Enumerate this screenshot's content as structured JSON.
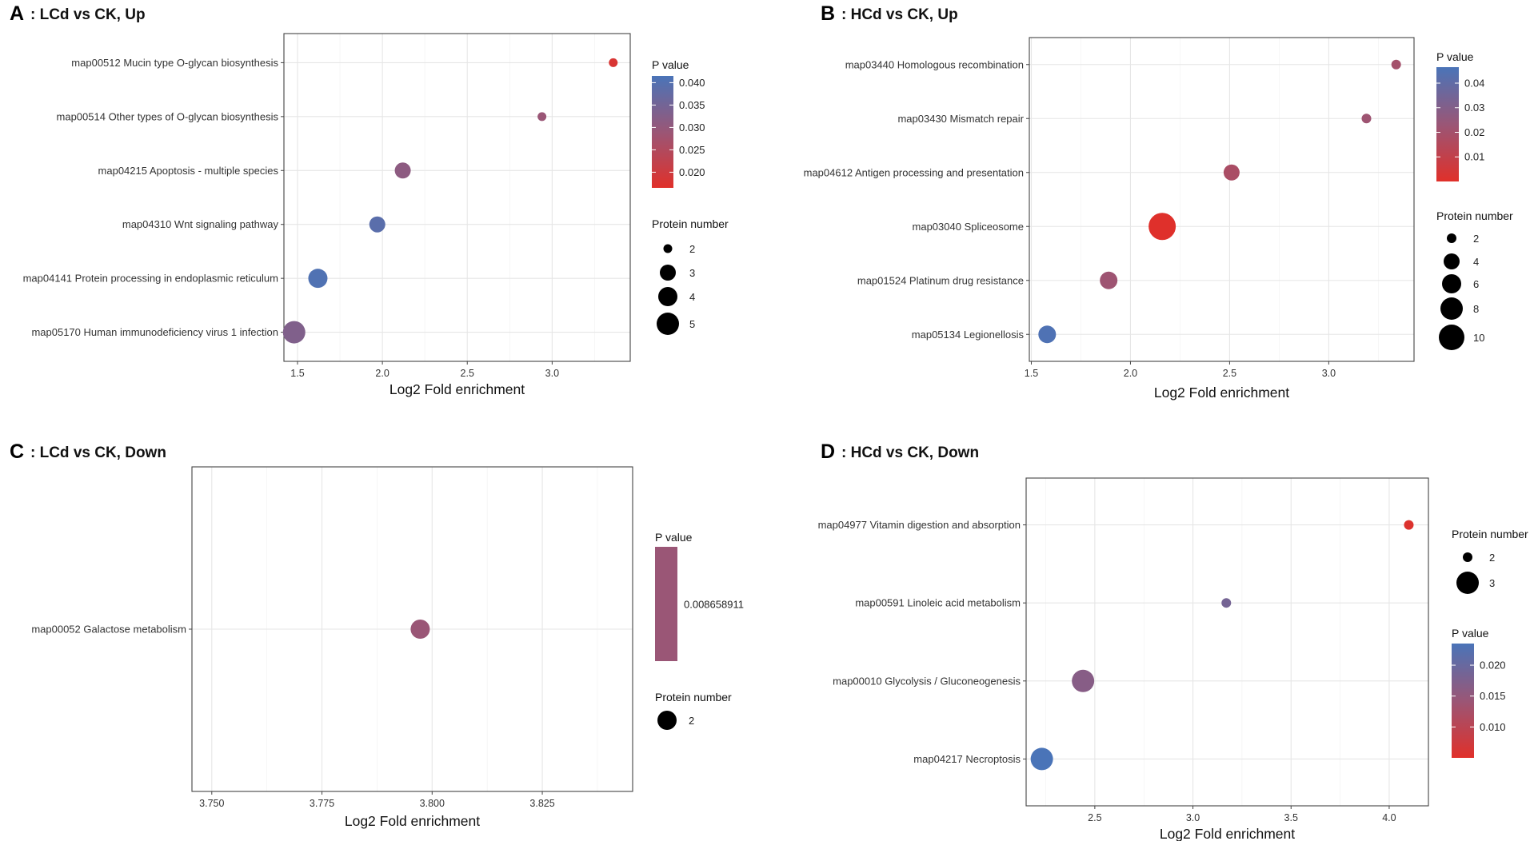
{
  "colors": {
    "low_p": "#e0302a",
    "high_p": "#4a74b8",
    "mid_p": "#9a5676",
    "point_black": "#000000"
  },
  "chart_data": [
    {
      "panel": "A",
      "title": ": LCd vs CK, Up",
      "type": "scatter",
      "xlabel": "Log2 Fold enrichment",
      "xlim": [
        1.42,
        3.46
      ],
      "xticks": [
        1.5,
        2.0,
        2.5,
        3.0
      ],
      "xtick_labels": [
        "1.5",
        "2.0",
        "2.5",
        "3.0"
      ],
      "categories": [
        "map00512 Mucin type O-glycan biosynthesis",
        "map00514 Other types of O-glycan biosynthesis",
        "map04215 Apoptosis - multiple species",
        "map04310 Wnt signaling pathway",
        "map04141 Protein processing in endoplasmic reticulum",
        "map05170 Human immunodeficiency virus 1 infection"
      ],
      "points": [
        {
          "x": 3.36,
          "protein_number": 2,
          "p_value": 0.018
        },
        {
          "x": 2.94,
          "protein_number": 2,
          "p_value": 0.029
        },
        {
          "x": 2.12,
          "protein_number": 3,
          "p_value": 0.031
        },
        {
          "x": 1.97,
          "protein_number": 3,
          "p_value": 0.039
        },
        {
          "x": 1.62,
          "protein_number": 4,
          "p_value": 0.0405
        },
        {
          "x": 1.48,
          "protein_number": 5,
          "p_value": 0.033
        }
      ],
      "color_legend": {
        "title": "P value",
        "min": 0.0165,
        "max": 0.0415,
        "ticks": [
          0.04,
          0.035,
          0.03,
          0.025,
          0.02
        ],
        "tick_labels": [
          "0.040",
          "0.035",
          "0.030",
          "0.025",
          "0.020"
        ]
      },
      "size_legend": {
        "title": "Protein number",
        "values": [
          2,
          3,
          4,
          5
        ],
        "labels": [
          "2",
          "3",
          "4",
          "5"
        ]
      }
    },
    {
      "panel": "B",
      "title": ": HCd vs CK, Up",
      "type": "scatter",
      "xlabel": "Log2 Fold enrichment",
      "xlim": [
        1.49,
        3.43
      ],
      "xticks": [
        1.5,
        2.0,
        2.5,
        3.0
      ],
      "xtick_labels": [
        "1.5",
        "2.0",
        "2.5",
        "3.0"
      ],
      "categories": [
        "map03440 Homologous recombination",
        "map03430 Mismatch repair",
        "map04612 Antigen processing and presentation",
        "map03040 Spliceosome",
        "map01524 Platinum drug resistance",
        "map05134 Legionellosis"
      ],
      "points": [
        {
          "x": 3.34,
          "protein_number": 2,
          "p_value": 0.02
        },
        {
          "x": 3.19,
          "protein_number": 2,
          "p_value": 0.022
        },
        {
          "x": 2.51,
          "protein_number": 4,
          "p_value": 0.018
        },
        {
          "x": 2.16,
          "protein_number": 11,
          "p_value": 0.0003
        },
        {
          "x": 1.89,
          "protein_number": 5,
          "p_value": 0.022
        },
        {
          "x": 1.58,
          "protein_number": 5,
          "p_value": 0.045
        }
      ],
      "color_legend": {
        "title": "P value",
        "min": 0.0,
        "max": 0.0465,
        "ticks": [
          0.04,
          0.03,
          0.02,
          0.01
        ],
        "tick_labels": [
          "0.04",
          "0.03",
          "0.02",
          "0.01"
        ]
      },
      "size_legend": {
        "title": "Protein number",
        "values": [
          2,
          4,
          6,
          8,
          10
        ],
        "labels": [
          "2",
          "4",
          "6",
          "8",
          "10"
        ]
      }
    },
    {
      "panel": "C",
      "title": ": LCd vs CK, Down",
      "type": "scatter",
      "xlabel": "Log2 Fold enrichment",
      "xlim": [
        3.7455,
        3.8455
      ],
      "xticks": [
        3.75,
        3.775,
        3.8,
        3.825
      ],
      "xtick_labels": [
        "3.750",
        "3.775",
        "3.800",
        "3.825"
      ],
      "categories": [
        "map00052 Galactose metabolism"
      ],
      "points": [
        {
          "x": 3.7973,
          "protein_number": 2,
          "p_value": 0.008658911
        }
      ],
      "color_legend": {
        "title": "P value",
        "single": true,
        "tick_labels": [
          "0.008658911"
        ]
      },
      "size_legend": {
        "title": "Protein number",
        "values": [
          2
        ],
        "labels": [
          "2"
        ]
      }
    },
    {
      "panel": "D",
      "title": ": HCd vs CK, Down",
      "type": "scatter",
      "xlabel": "Log2 Fold enrichment",
      "xlim": [
        2.15,
        4.2
      ],
      "xticks": [
        2.5,
        3.0,
        3.5,
        4.0
      ],
      "xtick_labels": [
        "2.5",
        "3.0",
        "3.5",
        "4.0"
      ],
      "categories": [
        "map04977 Vitamin digestion and absorption",
        "map00591 Linoleic acid metabolism",
        "map00010 Glycolysis / Gluconeogenesis",
        "map04217 Necroptosis"
      ],
      "points": [
        {
          "x": 4.1,
          "protein_number": 2,
          "p_value": 0.0055
        },
        {
          "x": 3.17,
          "protein_number": 2,
          "p_value": 0.0185
        },
        {
          "x": 2.44,
          "protein_number": 3,
          "p_value": 0.0165
        },
        {
          "x": 2.23,
          "protein_number": 3,
          "p_value": 0.0235
        }
      ],
      "size_legend": {
        "title": "Protein number",
        "values": [
          2,
          3
        ],
        "labels": [
          "2",
          "3"
        ]
      },
      "color_legend": {
        "title": "P value",
        "min": 0.005,
        "max": 0.0235,
        "ticks": [
          0.02,
          0.015,
          0.01
        ],
        "tick_labels": [
          "0.020",
          "0.015",
          "0.010"
        ]
      }
    }
  ]
}
